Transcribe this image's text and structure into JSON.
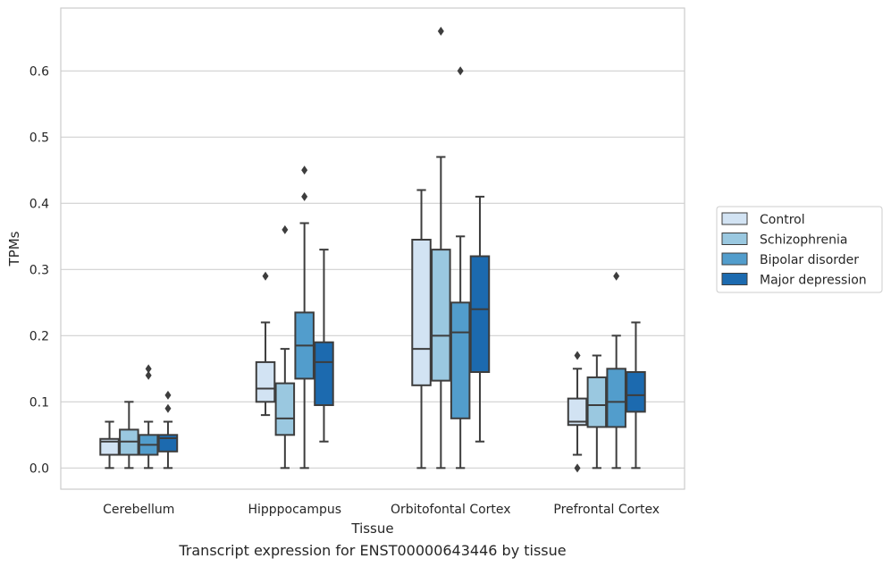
{
  "caption": "Transcript expression for ENST00000643446 by tissue",
  "chart_data": {
    "type": "box",
    "xlabel": "Tissue",
    "ylabel": "TPMs",
    "ylim": [
      -0.032,
      0.695
    ],
    "yticks": [
      0.0,
      0.1,
      0.2,
      0.3,
      0.4,
      0.5,
      0.6
    ],
    "ytick_labels": [
      "0.0",
      "0.1",
      "0.2",
      "0.3",
      "0.4",
      "0.5",
      "0.6"
    ],
    "grid": "horizontal",
    "legend_position": "right",
    "categories": [
      "Cerebellum",
      "Hipppocampus",
      "Orbitofontal Cortex",
      "Prefrontal Cortex"
    ],
    "series": [
      {
        "name": "Control",
        "color": "#d2e3f3",
        "boxes": [
          {
            "whislo": 0.0,
            "q1": 0.02,
            "med": 0.04,
            "q3": 0.044,
            "whishi": 0.07,
            "fliers": []
          },
          {
            "whislo": 0.08,
            "q1": 0.1,
            "med": 0.12,
            "q3": 0.16,
            "whishi": 0.22,
            "fliers": [
              0.29
            ]
          },
          {
            "whislo": 0.0,
            "q1": 0.125,
            "med": 0.18,
            "q3": 0.345,
            "whishi": 0.42,
            "fliers": []
          },
          {
            "whislo": 0.02,
            "q1": 0.065,
            "med": 0.07,
            "q3": 0.105,
            "whishi": 0.15,
            "fliers": [
              0.17,
              0.0
            ]
          }
        ]
      },
      {
        "name": "Schizophrenia",
        "color": "#9ac8e0",
        "boxes": [
          {
            "whislo": 0.0,
            "q1": 0.02,
            "med": 0.04,
            "q3": 0.058,
            "whishi": 0.1,
            "fliers": []
          },
          {
            "whislo": 0.0,
            "q1": 0.05,
            "med": 0.075,
            "q3": 0.128,
            "whishi": 0.18,
            "fliers": [
              0.36
            ]
          },
          {
            "whislo": 0.0,
            "q1": 0.132,
            "med": 0.2,
            "q3": 0.33,
            "whishi": 0.47,
            "fliers": [
              0.66
            ]
          },
          {
            "whislo": 0.0,
            "q1": 0.062,
            "med": 0.095,
            "q3": 0.137,
            "whishi": 0.17,
            "fliers": []
          }
        ]
      },
      {
        "name": "Bipolar disorder",
        "color": "#529dcc",
        "boxes": [
          {
            "whislo": 0.0,
            "q1": 0.02,
            "med": 0.035,
            "q3": 0.05,
            "whishi": 0.07,
            "fliers": [
              0.15,
              0.14
            ]
          },
          {
            "whislo": 0.0,
            "q1": 0.135,
            "med": 0.185,
            "q3": 0.235,
            "whishi": 0.37,
            "fliers": [
              0.45,
              0.41
            ]
          },
          {
            "whislo": 0.0,
            "q1": 0.075,
            "med": 0.205,
            "q3": 0.25,
            "whishi": 0.35,
            "fliers": [
              0.6
            ]
          },
          {
            "whislo": 0.0,
            "q1": 0.062,
            "med": 0.1,
            "q3": 0.15,
            "whishi": 0.2,
            "fliers": [
              0.29
            ]
          }
        ]
      },
      {
        "name": "Major depression",
        "color": "#1c6aaf",
        "boxes": [
          {
            "whislo": 0.0,
            "q1": 0.025,
            "med": 0.045,
            "q3": 0.05,
            "whishi": 0.07,
            "fliers": [
              0.11,
              0.09
            ]
          },
          {
            "whislo": 0.04,
            "q1": 0.095,
            "med": 0.16,
            "q3": 0.19,
            "whishi": 0.33,
            "fliers": []
          },
          {
            "whislo": 0.04,
            "q1": 0.145,
            "med": 0.24,
            "q3": 0.32,
            "whishi": 0.41,
            "fliers": []
          },
          {
            "whislo": 0.0,
            "q1": 0.085,
            "med": 0.11,
            "q3": 0.145,
            "whishi": 0.22,
            "fliers": []
          }
        ]
      }
    ]
  }
}
